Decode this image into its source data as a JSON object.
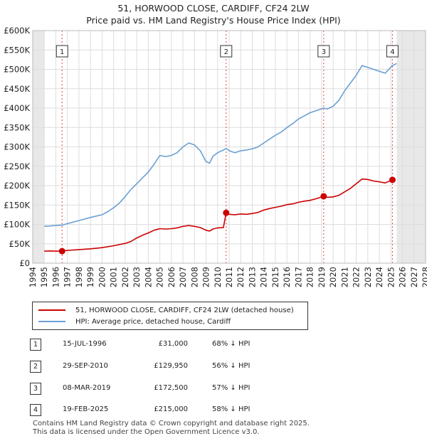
{
  "title_line1": "51, HORWOOD CLOSE, CARDIFF, CF24 2LW",
  "title_line2": "Price paid vs. HM Land Registry's House Price Index (HPI)",
  "chart_data": {
    "type": "line",
    "xlim": [
      1994,
      2028
    ],
    "ylim": [
      0,
      600000
    ],
    "x_ticks": [
      "1994",
      "1995",
      "1996",
      "1997",
      "1998",
      "1999",
      "2000",
      "2001",
      "2002",
      "2003",
      "2004",
      "2005",
      "2006",
      "2007",
      "2008",
      "2009",
      "2010",
      "2011",
      "2012",
      "2013",
      "2014",
      "2015",
      "2016",
      "2017",
      "2018",
      "2019",
      "2020",
      "2021",
      "2022",
      "2023",
      "2024",
      "2025",
      "2026",
      "2027",
      "2028"
    ],
    "y_ticks": [
      {
        "value": 0,
        "label": "£0"
      },
      {
        "value": 50000,
        "label": "£50K"
      },
      {
        "value": 100000,
        "label": "£100K"
      },
      {
        "value": 150000,
        "label": "£150K"
      },
      {
        "value": 200000,
        "label": "£200K"
      },
      {
        "value": 250000,
        "label": "£250K"
      },
      {
        "value": 300000,
        "label": "£300K"
      },
      {
        "value": 350000,
        "label": "£350K"
      },
      {
        "value": 400000,
        "label": "£400K"
      },
      {
        "value": 450000,
        "label": "£450K"
      },
      {
        "value": 500000,
        "label": "£500K"
      },
      {
        "value": 550000,
        "label": "£550K"
      },
      {
        "value": 600000,
        "label": "£600K"
      }
    ],
    "shaded_regions": [
      {
        "from": 1994,
        "to": 1995.0
      },
      {
        "from": 2025.5,
        "to": 2028
      }
    ],
    "series": [
      {
        "name": "51, HORWOOD CLOSE, CARDIFF, CF24 2LW (detached house)",
        "color": "#cc0000",
        "x": [
          1995.0,
          1995.5,
          1996.0,
          1996.54,
          1997.0,
          1998.0,
          1999.0,
          2000.0,
          2001.0,
          2002.0,
          2002.5,
          2003.0,
          2003.5,
          2004.0,
          2004.5,
          2005.0,
          2005.5,
          2006.0,
          2006.5,
          2007.0,
          2007.5,
          2008.0,
          2008.5,
          2009.0,
          2009.3,
          2009.6,
          2010.0,
          2010.5,
          2010.74,
          2011.0,
          2011.5,
          2012.0,
          2012.5,
          2013.0,
          2013.5,
          2014.0,
          2014.5,
          2015.0,
          2015.5,
          2016.0,
          2016.5,
          2017.0,
          2017.5,
          2018.0,
          2018.5,
          2019.18,
          2019.5,
          2020.0,
          2020.5,
          2021.0,
          2021.5,
          2022.0,
          2022.5,
          2023.0,
          2023.5,
          2024.0,
          2024.5,
          2025.13,
          2025.4
        ],
        "y": [
          31000,
          31500,
          31000,
          31000,
          33000,
          35000,
          37000,
          40000,
          45000,
          51000,
          56000,
          65000,
          72000,
          78000,
          85000,
          89000,
          88000,
          89000,
          91000,
          95000,
          97000,
          95000,
          92000,
          85000,
          83000,
          88000,
          91000,
          92000,
          129950,
          126000,
          125000,
          127000,
          126000,
          128000,
          131000,
          137000,
          141000,
          144000,
          147000,
          151000,
          153000,
          157000,
          160000,
          162000,
          166000,
          172500,
          170000,
          171000,
          175000,
          184000,
          193000,
          205000,
          217000,
          216000,
          212000,
          210000,
          207000,
          215000,
          216000
        ]
      },
      {
        "name": "HPI: Average price, detached house, Cardiff",
        "color": "#6a9fd4",
        "x": [
          1995.0,
          1995.5,
          1996.0,
          1996.54,
          1997.0,
          1998.0,
          1999.0,
          2000.0,
          2000.5,
          2001.0,
          2001.5,
          2002.0,
          2002.5,
          2003.0,
          2003.5,
          2004.0,
          2004.5,
          2005.0,
          2005.5,
          2006.0,
          2006.5,
          2007.0,
          2007.5,
          2008.0,
          2008.5,
          2009.0,
          2009.3,
          2009.6,
          2010.0,
          2010.5,
          2010.74,
          2011.0,
          2011.5,
          2012.0,
          2012.5,
          2013.0,
          2013.5,
          2014.0,
          2014.5,
          2015.0,
          2015.5,
          2016.0,
          2016.5,
          2017.0,
          2017.5,
          2018.0,
          2018.5,
          2019.18,
          2019.5,
          2020.0,
          2020.5,
          2021.0,
          2021.5,
          2022.0,
          2022.5,
          2023.0,
          2023.5,
          2024.0,
          2024.5,
          2025.13,
          2025.5
        ],
        "y": [
          95000,
          96000,
          97000,
          98000,
          102000,
          110000,
          118000,
          125000,
          133000,
          143000,
          155000,
          172000,
          190000,
          205000,
          220000,
          235000,
          255000,
          278000,
          275000,
          278000,
          285000,
          300000,
          310000,
          305000,
          290000,
          262000,
          258000,
          276000,
          285000,
          292000,
          296000,
          290000,
          285000,
          290000,
          292000,
          295000,
          300000,
          310000,
          320000,
          330000,
          338000,
          350000,
          360000,
          372000,
          380000,
          388000,
          393000,
          400000,
          398000,
          405000,
          420000,
          445000,
          465000,
          485000,
          510000,
          505000,
          500000,
          495000,
          490000,
          510000,
          515000
        ]
      }
    ],
    "markers": [
      {
        "label": "1",
        "x": 1996.54,
        "y": 31000
      },
      {
        "label": "2",
        "x": 2010.74,
        "y": 129950
      },
      {
        "label": "3",
        "x": 2019.18,
        "y": 172500
      },
      {
        "label": "4",
        "x": 2025.13,
        "y": 215000
      }
    ]
  },
  "legend": {
    "red_label": "51, HORWOOD CLOSE, CARDIFF, CF24 2LW (detached house)",
    "blue_label": "HPI: Average price, detached house, Cardiff"
  },
  "transactions": [
    {
      "num": "1",
      "date": "15-JUL-1996",
      "price": "£31,000",
      "hpi": "68% ↓ HPI"
    },
    {
      "num": "2",
      "date": "29-SEP-2010",
      "price": "£129,950",
      "hpi": "56% ↓ HPI"
    },
    {
      "num": "3",
      "date": "08-MAR-2019",
      "price": "£172,500",
      "hpi": "57% ↓ HPI"
    },
    {
      "num": "4",
      "date": "19-FEB-2025",
      "price": "£215,000",
      "hpi": "58% ↓ HPI"
    }
  ],
  "footer_line1": "Contains HM Land Registry data © Crown copyright and database right 2025.",
  "footer_line2": "This data is licensed under the Open Government Licence v3.0."
}
